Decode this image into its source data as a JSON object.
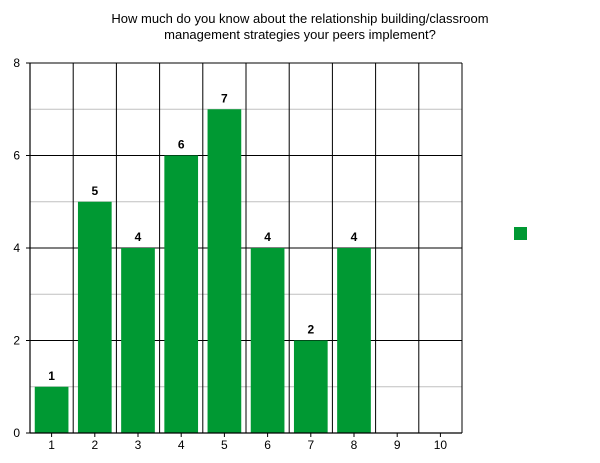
{
  "chart_data": {
    "type": "bar",
    "title": "How much do you know about the relationship building/classroom management strategies your peers implement?",
    "title_lines": [
      "How much do you know about the relationship building/classroom",
      "management strategies your peers implement?"
    ],
    "xlabel": "",
    "ylabel": "",
    "categories": [
      "1",
      "2",
      "3",
      "4",
      "5",
      "6",
      "7",
      "8",
      "9",
      "10"
    ],
    "series": [
      {
        "values": [
          1,
          5,
          4,
          6,
          7,
          4,
          2,
          4,
          0,
          0
        ]
      }
    ],
    "data_labels": [
      "1",
      "5",
      "4",
      "6",
      "7",
      "4",
      "2",
      "4",
      "",
      ""
    ],
    "ylim": [
      0,
      8
    ],
    "yticks": [
      0,
      2,
      4,
      6,
      8
    ],
    "grid": true,
    "minor_gridlines": true,
    "legend": {
      "position": "right",
      "entries": [
        ""
      ]
    },
    "colors": {
      "bar": "#009933",
      "grid": "#000000",
      "minor_grid": "#c0c0c0"
    }
  }
}
